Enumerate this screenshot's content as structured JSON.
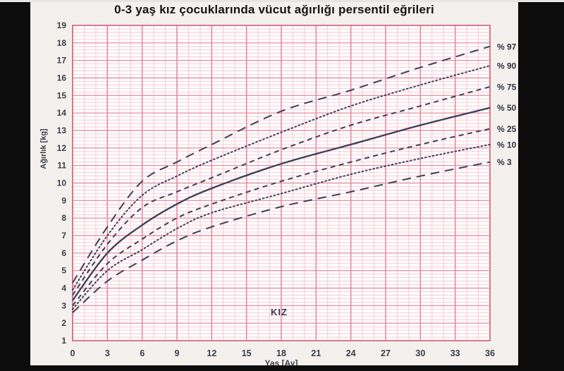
{
  "page": {
    "background_color": "#f3f0ed",
    "letterbox_color": "#0c0c0c"
  },
  "chart_data": {
    "type": "line",
    "title": "0-3 yaş kız çocuklarında vücut ağırlığı persentil eğrileri",
    "xlabel": "Yaş [Ay]",
    "ylabel": "Ağırlık [kg]",
    "annotation": {
      "text": "KIZ",
      "x_month": 18,
      "y_kg": 2.6
    },
    "legend_position": "right",
    "grid": true,
    "x_axis": {
      "min": 0,
      "max": 36,
      "major_step": 3,
      "minor_step": 1,
      "tick_labels": [
        0,
        3,
        6,
        9,
        12,
        15,
        18,
        21,
        24,
        27,
        30,
        33,
        36
      ]
    },
    "y_axis": {
      "min": 1,
      "max": 19,
      "major_step": 1,
      "minor_step": 0.2,
      "tick_labels": [
        1,
        2,
        3,
        4,
        5,
        6,
        7,
        8,
        9,
        10,
        11,
        12,
        13,
        14,
        15,
        16,
        17,
        18,
        19
      ]
    },
    "x": [
      0,
      3,
      6,
      9,
      12,
      18,
      24,
      30,
      36
    ],
    "series": [
      {
        "name": "p97",
        "label": "% 97",
        "line_style": "longdash",
        "values": [
          4.3,
          7.5,
          10.1,
          11.2,
          12.2,
          14.1,
          15.3,
          16.6,
          17.8
        ]
      },
      {
        "name": "p90",
        "label": "% 90",
        "line_style": "dot",
        "values": [
          3.9,
          7.0,
          9.3,
          10.4,
          11.3,
          12.9,
          14.4,
          15.6,
          16.7
        ]
      },
      {
        "name": "p75",
        "label": "% 75",
        "line_style": "dash",
        "values": [
          3.6,
          6.5,
          8.6,
          9.5,
          10.3,
          11.9,
          13.3,
          14.4,
          15.5
        ]
      },
      {
        "name": "p50",
        "label": "% 50",
        "line_style": "solid",
        "values": [
          3.3,
          6.0,
          7.6,
          8.8,
          9.7,
          11.1,
          12.2,
          13.3,
          14.3
        ]
      },
      {
        "name": "p25",
        "label": "% 25",
        "line_style": "dash",
        "values": [
          3.0,
          5.4,
          6.8,
          8.0,
          8.8,
          10.1,
          11.2,
          12.2,
          13.1
        ]
      },
      {
        "name": "p10",
        "label": "% 10",
        "line_style": "dot",
        "values": [
          2.8,
          5.0,
          6.2,
          7.4,
          8.3,
          9.4,
          10.5,
          11.4,
          12.2
        ]
      },
      {
        "name": "p3",
        "label": "% 3",
        "line_style": "longdash",
        "values": [
          2.6,
          4.4,
          5.6,
          6.7,
          7.5,
          8.65,
          9.5,
          10.4,
          11.2
        ]
      }
    ],
    "colors": {
      "curve": "#3a4156",
      "grid_major": "#e4849d",
      "grid_minor": "#f5c4d1",
      "plot_border": "#d86e8a",
      "plot_background": "#fffcfc",
      "tick_text": "#3a3f4c",
      "label_text": "#2e3340"
    }
  }
}
